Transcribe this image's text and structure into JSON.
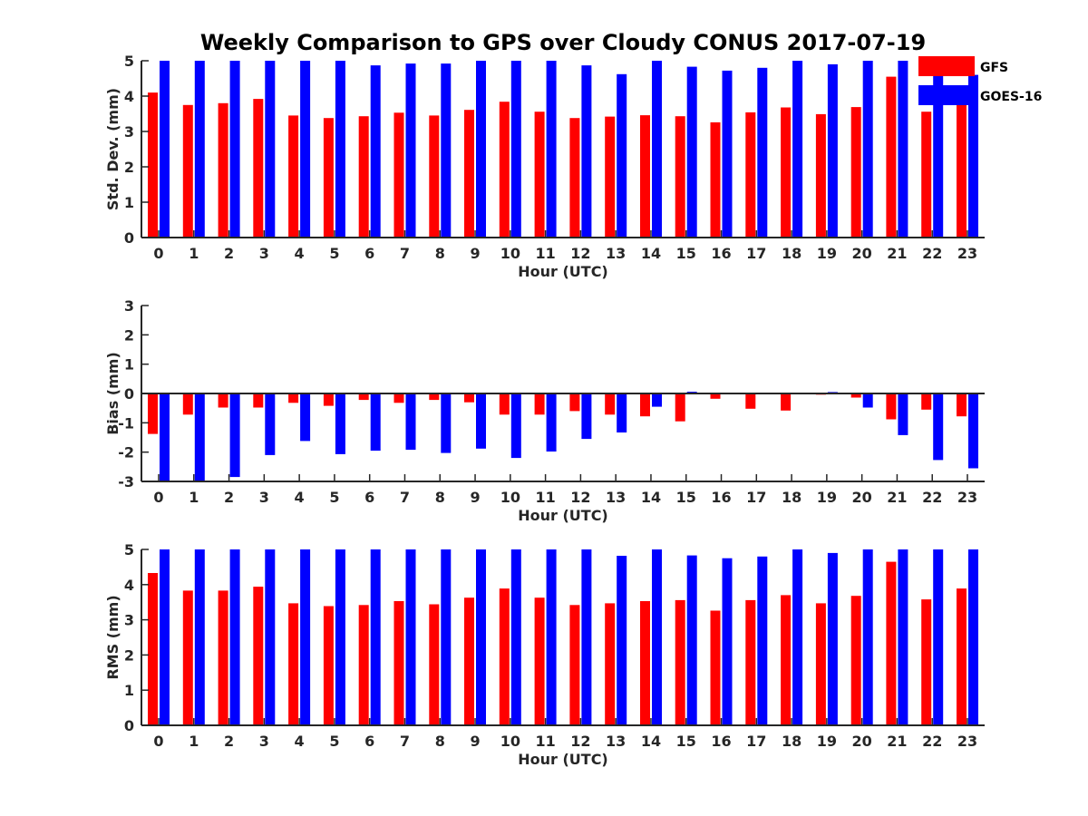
{
  "title": "Weekly Comparison to GPS over Cloudy CONUS 2017-07-19",
  "colors": {
    "gfs": "#ff0000",
    "goes": "#0000ff",
    "axis": "#262626"
  },
  "legend": {
    "placement": "top-right",
    "entries": [
      "GFS",
      "GOES-16"
    ]
  },
  "chart_data": [
    {
      "type": "bar",
      "ylabel": "Std. Dev. (mm)",
      "xlabel": "Hour (UTC)",
      "ylim": [
        0,
        5
      ],
      "yticks": [
        0,
        1,
        2,
        3,
        4,
        5
      ],
      "categories": [
        "0",
        "1",
        "2",
        "3",
        "4",
        "5",
        "6",
        "7",
        "8",
        "9",
        "10",
        "11",
        "12",
        "13",
        "14",
        "15",
        "16",
        "17",
        "18",
        "19",
        "20",
        "21",
        "22",
        "23"
      ],
      "series": [
        {
          "name": "GFS",
          "values": [
            4.1,
            3.75,
            3.8,
            3.92,
            3.45,
            3.38,
            3.43,
            3.53,
            3.45,
            3.61,
            3.84,
            3.56,
            3.38,
            3.42,
            3.46,
            3.43,
            3.26,
            3.54,
            3.68,
            3.49,
            3.69,
            4.55,
            3.56,
            3.8
          ]
        },
        {
          "name": "GOES-16",
          "values": [
            5,
            5,
            5,
            5,
            5,
            5,
            4.87,
            4.92,
            4.92,
            5,
            5,
            5,
            4.87,
            4.62,
            5,
            4.83,
            4.72,
            4.8,
            5,
            4.9,
            5,
            5,
            5,
            4.6
          ]
        }
      ],
      "grid": false
    },
    {
      "type": "bar",
      "ylabel": "Bias (mm)",
      "xlabel": "Hour (UTC)",
      "ylim": [
        -3,
        3
      ],
      "yticks": [
        -3,
        -2,
        -1,
        0,
        1,
        2,
        3
      ],
      "categories": [
        "0",
        "1",
        "2",
        "3",
        "4",
        "5",
        "6",
        "7",
        "8",
        "9",
        "10",
        "11",
        "12",
        "13",
        "14",
        "15",
        "16",
        "17",
        "18",
        "19",
        "20",
        "21",
        "22",
        "23"
      ],
      "series": [
        {
          "name": "GFS",
          "values": [
            -1.38,
            -0.72,
            -0.48,
            -0.48,
            -0.32,
            -0.42,
            -0.22,
            -0.32,
            -0.22,
            -0.3,
            -0.72,
            -0.72,
            -0.6,
            -0.72,
            -0.78,
            -0.95,
            -0.18,
            -0.52,
            -0.58,
            -0.04,
            -0.14,
            -0.88,
            -0.55,
            -0.78
          ]
        },
        {
          "name": "GOES-16",
          "values": [
            -3.0,
            -3.0,
            -2.85,
            -2.1,
            -1.62,
            -2.07,
            -1.95,
            -1.92,
            -2.03,
            -1.88,
            -2.2,
            -1.98,
            -1.55,
            -1.33,
            -0.45,
            0.06,
            0.02,
            0.02,
            0.02,
            0.05,
            -0.48,
            -1.42,
            -2.27,
            -2.55
          ]
        }
      ],
      "grid": false
    },
    {
      "type": "bar",
      "ylabel": "RMS (mm)",
      "xlabel": "Hour (UTC)",
      "ylim": [
        0,
        5
      ],
      "yticks": [
        0,
        1,
        2,
        3,
        4,
        5
      ],
      "categories": [
        "0",
        "1",
        "2",
        "3",
        "4",
        "5",
        "6",
        "7",
        "8",
        "9",
        "10",
        "11",
        "12",
        "13",
        "14",
        "15",
        "16",
        "17",
        "18",
        "19",
        "20",
        "21",
        "22",
        "23"
      ],
      "series": [
        {
          "name": "GFS",
          "values": [
            4.33,
            3.83,
            3.83,
            3.94,
            3.47,
            3.39,
            3.42,
            3.53,
            3.44,
            3.63,
            3.89,
            3.63,
            3.42,
            3.47,
            3.53,
            3.56,
            3.26,
            3.56,
            3.7,
            3.47,
            3.68,
            4.65,
            3.58,
            3.89
          ]
        },
        {
          "name": "GOES-16",
          "values": [
            5,
            5,
            5,
            5,
            5,
            5,
            5,
            5,
            5,
            5,
            5,
            5,
            5,
            4.82,
            5,
            4.83,
            4.75,
            4.8,
            5,
            4.9,
            5,
            5,
            5,
            5
          ]
        }
      ],
      "grid": false
    }
  ]
}
